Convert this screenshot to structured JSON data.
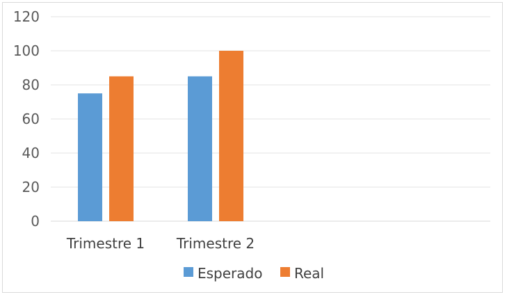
{
  "chart_data": {
    "type": "bar",
    "categories": [
      "Trimestre 1",
      "Trimestre 2",
      "",
      ""
    ],
    "series": [
      {
        "name": "Esperado",
        "values": [
          75,
          85,
          null,
          null
        ],
        "color": "#5b9bd5"
      },
      {
        "name": "Real",
        "values": [
          85,
          100,
          null,
          null
        ],
        "color": "#ed7d31"
      }
    ],
    "ylim": [
      0,
      120
    ],
    "yticks": [
      0,
      20,
      40,
      60,
      80,
      100,
      120
    ],
    "grid": true,
    "legend_position": "bottom",
    "title": "",
    "xlabel": "",
    "ylabel": ""
  }
}
